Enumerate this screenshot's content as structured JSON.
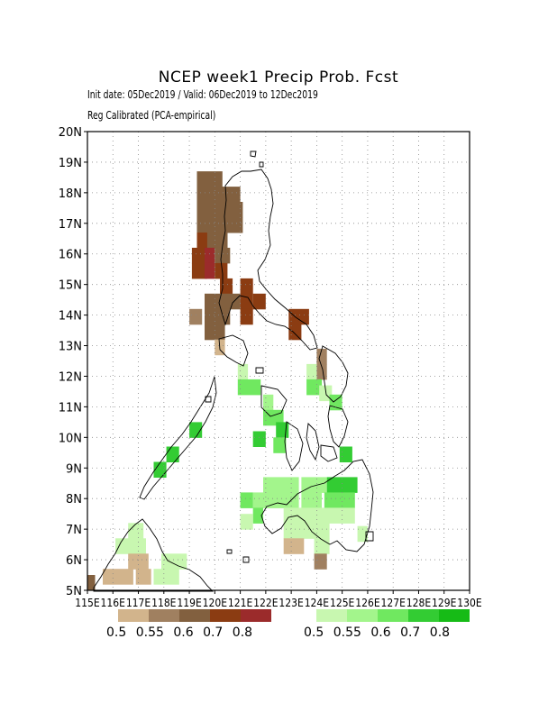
{
  "title": "NCEP week1 Precip Prob. Fcst",
  "subtitle1": "Init date: 05Dec2019 / Valid: 06Dec2019 to 12Dec2019",
  "subtitle2": "Reg Calibrated (PCA-empirical)",
  "map": {
    "lat_labels": [
      "20N",
      "19N",
      "18N",
      "17N",
      "16N",
      "15N",
      "14N",
      "13N",
      "12N",
      "11N",
      "10N",
      "9N",
      "8N",
      "7N",
      "6N",
      "5N"
    ],
    "lon_labels": [
      "115E",
      "116E",
      "117E",
      "118E",
      "119E",
      "120E",
      "121E",
      "122E",
      "123E",
      "124E",
      "125E",
      "126E",
      "127E",
      "128E",
      "129E",
      "130E"
    ],
    "lat_range": [
      5,
      20
    ],
    "lon_range": [
      115,
      130
    ],
    "grid": "dotted"
  },
  "legend_dry": {
    "colors": [
      "#d2b48c",
      "#a08060",
      "#82603f",
      "#8b3c12",
      "#9b2b2b"
    ],
    "labels": [
      "0.5",
      "0.55",
      "0.6",
      "0.7",
      "0.8"
    ]
  },
  "legend_wet": {
    "colors": [
      "#c8f7b0",
      "#a3f58c",
      "#70e860",
      "#33cc33",
      "#16bb16"
    ],
    "labels": [
      "0.5",
      "0.55",
      "0.6",
      "0.7",
      "0.8"
    ]
  }
}
